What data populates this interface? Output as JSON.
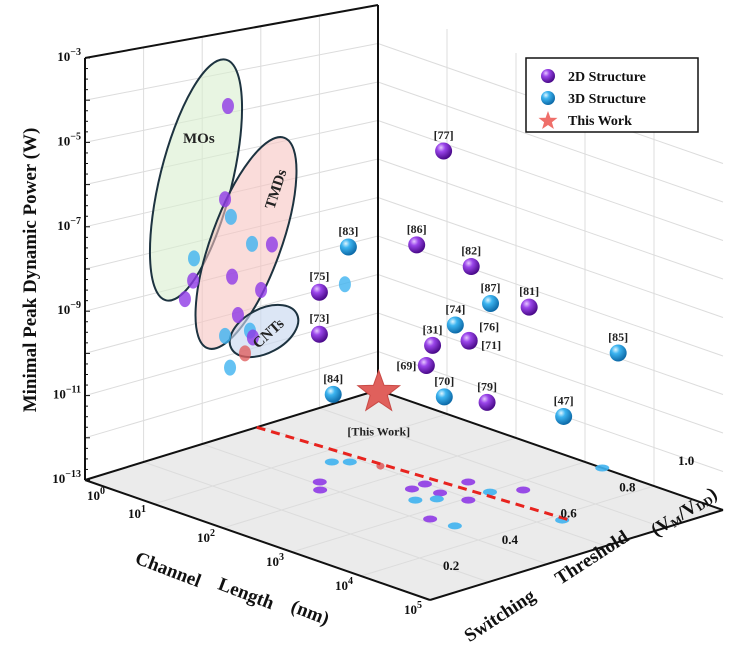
{
  "chart_data": {
    "type": "scatter3d",
    "axes": {
      "x": {
        "label": "Channel Length (nm)",
        "scale": "log",
        "range_log10": [
          0,
          5
        ],
        "ticks_log10": [
          0,
          1,
          2,
          3,
          4,
          5
        ]
      },
      "y": {
        "label": "Switching Threshold (V",
        "label_sub1": "M",
        "label_mid": "/V",
        "label_sub2": "DD",
        "label_end": ")",
        "range": [
          0,
          1
        ],
        "ticks": [
          "0.2",
          "0.4",
          "0.6",
          "0.8",
          "1.0"
        ]
      },
      "z": {
        "label": "Minimal Peak Dynamic Power (W)",
        "scale": "log",
        "range_log10": [
          -13,
          -3
        ],
        "ticks_log10": [
          -3,
          -5,
          -7,
          -9,
          -11,
          -13
        ]
      }
    },
    "legend": {
      "placement": "top-right",
      "items": [
        {
          "label": "2D Structure",
          "type": "2D"
        },
        {
          "label": "3D Structure",
          "type": "3D"
        },
        {
          "label": "This Work",
          "type": "star"
        }
      ]
    },
    "colors": {
      "2D": "#8a2fe0",
      "3D": "#2aa3e6",
      "star": "#e85a5a",
      "dashed": "#e8231e"
    },
    "points": [
      {
        "ref": "[77]",
        "type": "2D",
        "log10_L": 1.8,
        "V": 0.8,
        "log10_P": -5.35
      },
      {
        "ref": "[83]",
        "type": "3D",
        "log10_L": 0.42,
        "V": 0.8,
        "log10_P": -8.64
      },
      {
        "ref": "[86]",
        "type": "2D",
        "log10_L": 1.41,
        "V": 0.8,
        "log10_P": -7.98
      },
      {
        "ref": "[82]",
        "type": "2D",
        "log10_L": 2.2,
        "V": 0.8,
        "log10_P": -8.05
      },
      {
        "ref": "[87]",
        "type": "3D",
        "log10_L": 2.48,
        "V": 0.8,
        "log10_P": -8.82
      },
      {
        "ref": "[81]",
        "type": "2D",
        "log10_L": 3.04,
        "V": 0.8,
        "log10_P": -8.57
      },
      {
        "ref": "[75]",
        "type": "2D",
        "log10_L": 0.0,
        "V": 0.8,
        "log10_P": -10.05
      },
      {
        "ref": "[73]",
        "type": "2D",
        "log10_L": 0.0,
        "V": 0.8,
        "log10_P": -11.12
      },
      {
        "ref": "[74]",
        "type": "3D",
        "log10_L": 1.97,
        "V": 0.8,
        "log10_P": -9.68
      },
      {
        "ref": "[76]",
        "type": "2D",
        "log10_L": 2.17,
        "V": 0.8,
        "log10_P": -9.95
      },
      {
        "ref": "[71]",
        "type": "2D",
        "log10_L": 2.17,
        "V": 0.8,
        "log10_P": -9.97,
        "label_side": "right"
      },
      {
        "ref": "[31]",
        "type": "2D",
        "log10_L": 1.64,
        "V": 0.8,
        "log10_P": -10.4
      },
      {
        "ref": "[69]",
        "type": "2D",
        "log10_L": 1.55,
        "V": 0.8,
        "log10_P": -10.97,
        "label_side": "left"
      },
      {
        "ref": "[85]",
        "type": "3D",
        "log10_L": 4.33,
        "V": 0.8,
        "log10_P": -8.95
      },
      {
        "ref": "[84]",
        "type": "3D",
        "log10_L": 0.2,
        "V": 0.8,
        "log10_P": -12.53
      },
      {
        "ref": "[70]",
        "type": "3D",
        "log10_L": 1.81,
        "V": 0.8,
        "log10_P": -11.61
      },
      {
        "ref": "[79]",
        "type": "2D",
        "log10_L": 2.43,
        "V": 0.8,
        "log10_P": -11.37
      },
      {
        "ref": "[47]",
        "type": "3D",
        "log10_L": 3.54,
        "V": 0.8,
        "log10_P": -11.05
      }
    ],
    "this_work": {
      "label": "[This Work]",
      "log10_L": 0.86,
      "V": 0.8,
      "log10_P": -12.08
    },
    "wall_projections": [
      {
        "type": "2D",
        "V": 0.488,
        "log10_P": -4.83
      },
      {
        "type": "2D",
        "V": 0.478,
        "log10_P": -7.12
      },
      {
        "type": "3D",
        "V": 0.498,
        "log10_P": -7.59
      },
      {
        "type": "3D",
        "V": 0.372,
        "log10_P": -8.39
      },
      {
        "type": "2D",
        "V": 0.369,
        "log10_P": -8.93
      },
      {
        "type": "2D",
        "V": 0.341,
        "log10_P": -9.33
      },
      {
        "type": "3D",
        "V": 0.57,
        "log10_P": -8.39
      },
      {
        "type": "2D",
        "V": 0.638,
        "log10_P": -8.53
      },
      {
        "type": "2D",
        "V": 0.502,
        "log10_P": -9.08
      },
      {
        "type": "2D",
        "V": 0.601,
        "log10_P": -9.6
      },
      {
        "type": "2D",
        "V": 0.522,
        "log10_P": -10.07
      },
      {
        "type": "3D",
        "V": 0.478,
        "log10_P": -10.5
      },
      {
        "type": "3D",
        "V": 0.563,
        "log10_P": -10.54
      },
      {
        "type": "2D",
        "V": 0.573,
        "log10_P": -10.73
      },
      {
        "type": "star",
        "V": 0.546,
        "log10_P": -11.07
      },
      {
        "type": "3D",
        "V": 0.495,
        "log10_P": -11.32
      },
      {
        "type": "3D",
        "V": 0.887,
        "log10_P": -10.02
      }
    ],
    "floor_projections": [
      {
        "type": "3D",
        "log10_L": 1.28,
        "V": 0.541
      },
      {
        "type": "3D",
        "log10_L": 1.4,
        "V": 0.574
      },
      {
        "type": "star",
        "log10_L": 1.7,
        "V": 0.608
      },
      {
        "type": "2D",
        "log10_L": 1.64,
        "V": 0.415
      },
      {
        "type": "2D",
        "log10_L": 1.82,
        "V": 0.374
      },
      {
        "type": "2D",
        "log10_L": 2.42,
        "V": 0.546
      },
      {
        "type": "2D",
        "log10_L": 2.4,
        "V": 0.595
      },
      {
        "type": "2D",
        "log10_L": 2.7,
        "V": 0.576
      },
      {
        "type": "3D",
        "log10_L": 2.69,
        "V": 0.494
      },
      {
        "type": "3D",
        "log10_L": 2.81,
        "V": 0.539
      },
      {
        "type": "2D",
        "log10_L": 2.65,
        "V": 0.684
      },
      {
        "type": "2D",
        "log10_L": 3.05,
        "V": 0.59
      },
      {
        "type": "3D",
        "log10_L": 3.02,
        "V": 0.671
      },
      {
        "type": "2D",
        "log10_L": 3.2,
        "V": 0.742
      },
      {
        "type": "2D",
        "log10_L": 3.21,
        "V": 0.422
      },
      {
        "type": "3D",
        "log10_L": 3.53,
        "V": 0.431
      },
      {
        "type": "3D",
        "log10_L": 3.25,
        "V": 1.0
      },
      {
        "type": "3D",
        "log10_L": 4.13,
        "V": 0.656
      }
    ],
    "dashed_line": {
      "from": {
        "log10_L": 0,
        "V": 0.586
      },
      "to": {
        "log10_L": 4.18,
        "V": 0.67
      }
    },
    "groups": [
      {
        "label": "MOs",
        "color": "#e2f3dc"
      },
      {
        "label": "TMDs",
        "color": "#f8d2d0"
      },
      {
        "label": "CNTs",
        "color": "#d6e2f2"
      }
    ]
  }
}
